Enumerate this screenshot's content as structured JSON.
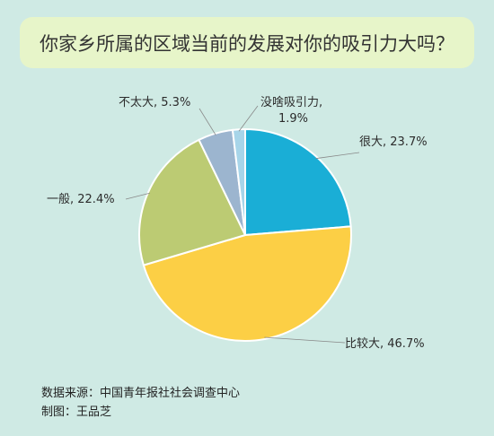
{
  "chart_data": {
    "type": "pie",
    "title": "你家乡所属的区域当前的发展对你的吸引力大吗？",
    "slices": [
      {
        "label": "很大",
        "value": 23.7,
        "display": "很大, 23.7%",
        "color": "#1aaed6"
      },
      {
        "label": "比较大",
        "value": 46.7,
        "display": "比较大, 46.7%",
        "color": "#fccf45"
      },
      {
        "label": "一般",
        "value": 22.4,
        "display": "一般, 22.4%",
        "color": "#bccb73"
      },
      {
        "label": "不太大",
        "value": 5.3,
        "display": "不太大, 5.3%",
        "color": "#9cb5cf"
      },
      {
        "label": "没啥吸引力",
        "value": 1.9,
        "display": "没啥吸引力,",
        "display2": "1.9%",
        "color": "#a7d5e9"
      }
    ],
    "start_angle_deg": 0,
    "direction": "clockwise-from-top"
  },
  "footer": {
    "source": "数据来源：中国青年报社社会调查中心",
    "credit": "制图：王品芝"
  }
}
